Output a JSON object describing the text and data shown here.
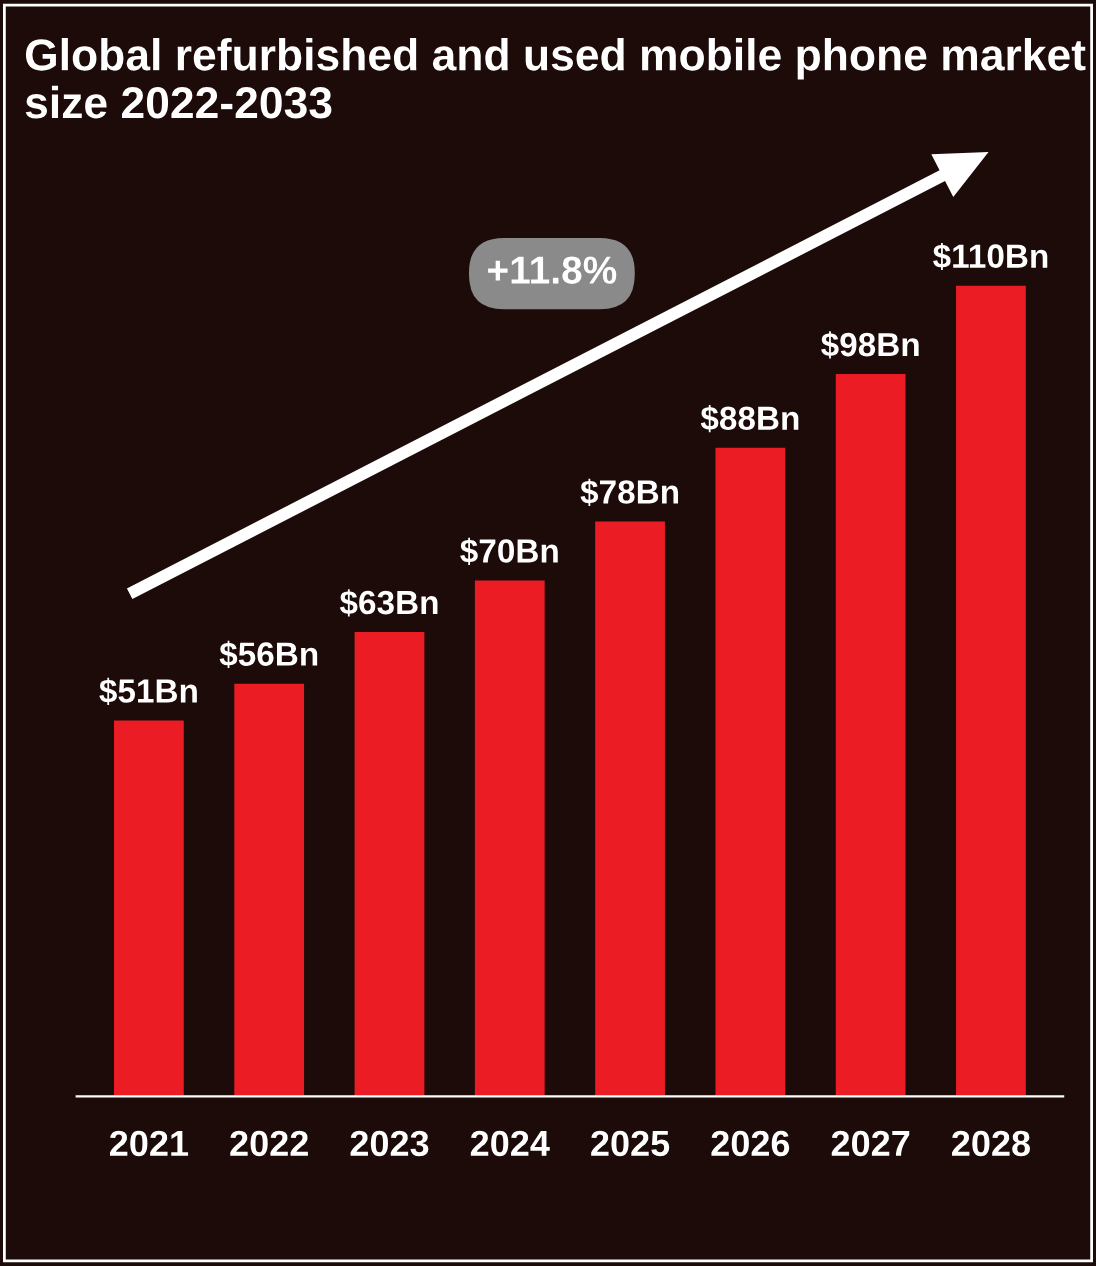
{
  "chart_data": {
    "type": "bar",
    "title": "Global refurbished and used mobile phone market size 2022-2033",
    "categories": [
      "2021",
      "2022",
      "2023",
      "2024",
      "2025",
      "2026",
      "2027",
      "2028"
    ],
    "values": [
      51,
      56,
      63,
      70,
      78,
      88,
      98,
      110
    ],
    "value_labels": [
      "$51Bn",
      "$56Bn",
      "$63Bn",
      "$70Bn",
      "$78Bn",
      "$88Bn",
      "$98Bn",
      "$110Bn"
    ],
    "color": "#ec1c24",
    "annotations": [
      "+11.8%"
    ],
    "grid": false,
    "legend": false
  }
}
